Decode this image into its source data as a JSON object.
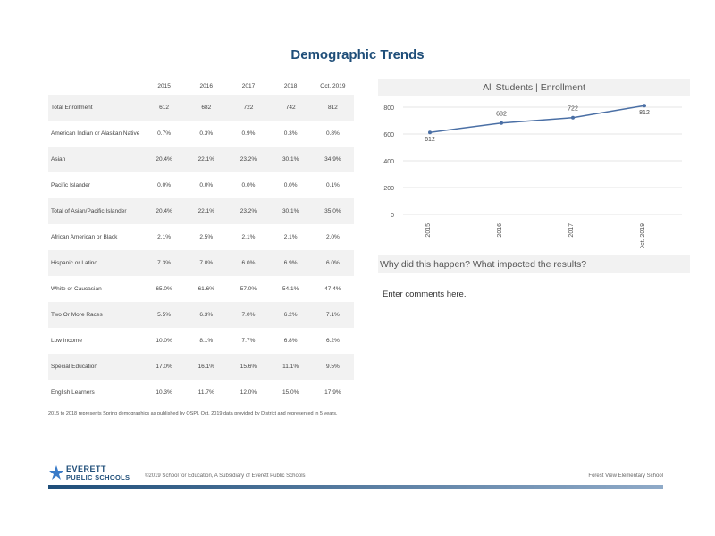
{
  "title": "Demographic Trends",
  "table": {
    "columns": [
      "2015",
      "2016",
      "2017",
      "2018",
      "Oct. 2019"
    ],
    "rows": [
      {
        "label": "Total Enrollment",
        "values": [
          "612",
          "682",
          "722",
          "742",
          "812"
        ]
      },
      {
        "label": "American Indian or Alaskan Native",
        "values": [
          "0.7%",
          "0.3%",
          "0.9%",
          "0.3%",
          "0.8%"
        ]
      },
      {
        "label": "Asian",
        "values": [
          "20.4%",
          "22.1%",
          "23.2%",
          "30.1%",
          "34.9%"
        ]
      },
      {
        "label": "Pacific Islander",
        "values": [
          "0.0%",
          "0.0%",
          "0.0%",
          "0.0%",
          "0.1%"
        ]
      },
      {
        "label": "Total of Asian/Pacific Islander",
        "values": [
          "20.4%",
          "22.1%",
          "23.2%",
          "30.1%",
          "35.0%"
        ]
      },
      {
        "label": "African American or Black",
        "values": [
          "2.1%",
          "2.5%",
          "2.1%",
          "2.1%",
          "2.0%"
        ]
      },
      {
        "label": "Hispanic or Latino",
        "values": [
          "7.3%",
          "7.0%",
          "6.0%",
          "6.9%",
          "6.0%"
        ]
      },
      {
        "label": "White or Caucasian",
        "values": [
          "65.0%",
          "61.6%",
          "57.0%",
          "54.1%",
          "47.4%"
        ]
      },
      {
        "label": "Two Or More Races",
        "values": [
          "5.5%",
          "6.3%",
          "7.0%",
          "6.2%",
          "7.1%"
        ]
      },
      {
        "label": "Low Income",
        "values": [
          "10.0%",
          "8.1%",
          "7.7%",
          "6.8%",
          "6.2%"
        ]
      },
      {
        "label": "Special Education",
        "values": [
          "17.0%",
          "16.1%",
          "15.6%",
          "11.1%",
          "9.5%"
        ]
      },
      {
        "label": "English Learners",
        "values": [
          "10.3%",
          "11.7%",
          "12.0%",
          "15.0%",
          "17.9%"
        ]
      }
    ]
  },
  "footnote": "2015 to 2018 represents Spring demographics as published by OSPI. Oct. 2019 data provided by District and represented in 5 years.",
  "chart_title": "All Students | Enrollment",
  "chart_data": {
    "type": "line",
    "categories": [
      "2015",
      "2016",
      "2017",
      "Oct. 2019"
    ],
    "values": [
      612,
      682,
      722,
      812
    ],
    "value_labels": [
      "612",
      "682",
      "722",
      "812"
    ],
    "yticks": [
      "0",
      "200",
      "400",
      "600",
      "800"
    ],
    "ylim": [
      0,
      800
    ],
    "grid": true,
    "color": "#4a6fa5"
  },
  "question": "Why did this happen? What impacted the results?",
  "comments": "Enter comments here.",
  "logo": {
    "line1": "EVERETT",
    "line2": "PUBLIC SCHOOLS",
    "color": "#1f4e79"
  },
  "footer": {
    "center": "©2019 School for Education, A Subsidiary of Everett Public Schools",
    "right": "Forest View Elementary School"
  }
}
